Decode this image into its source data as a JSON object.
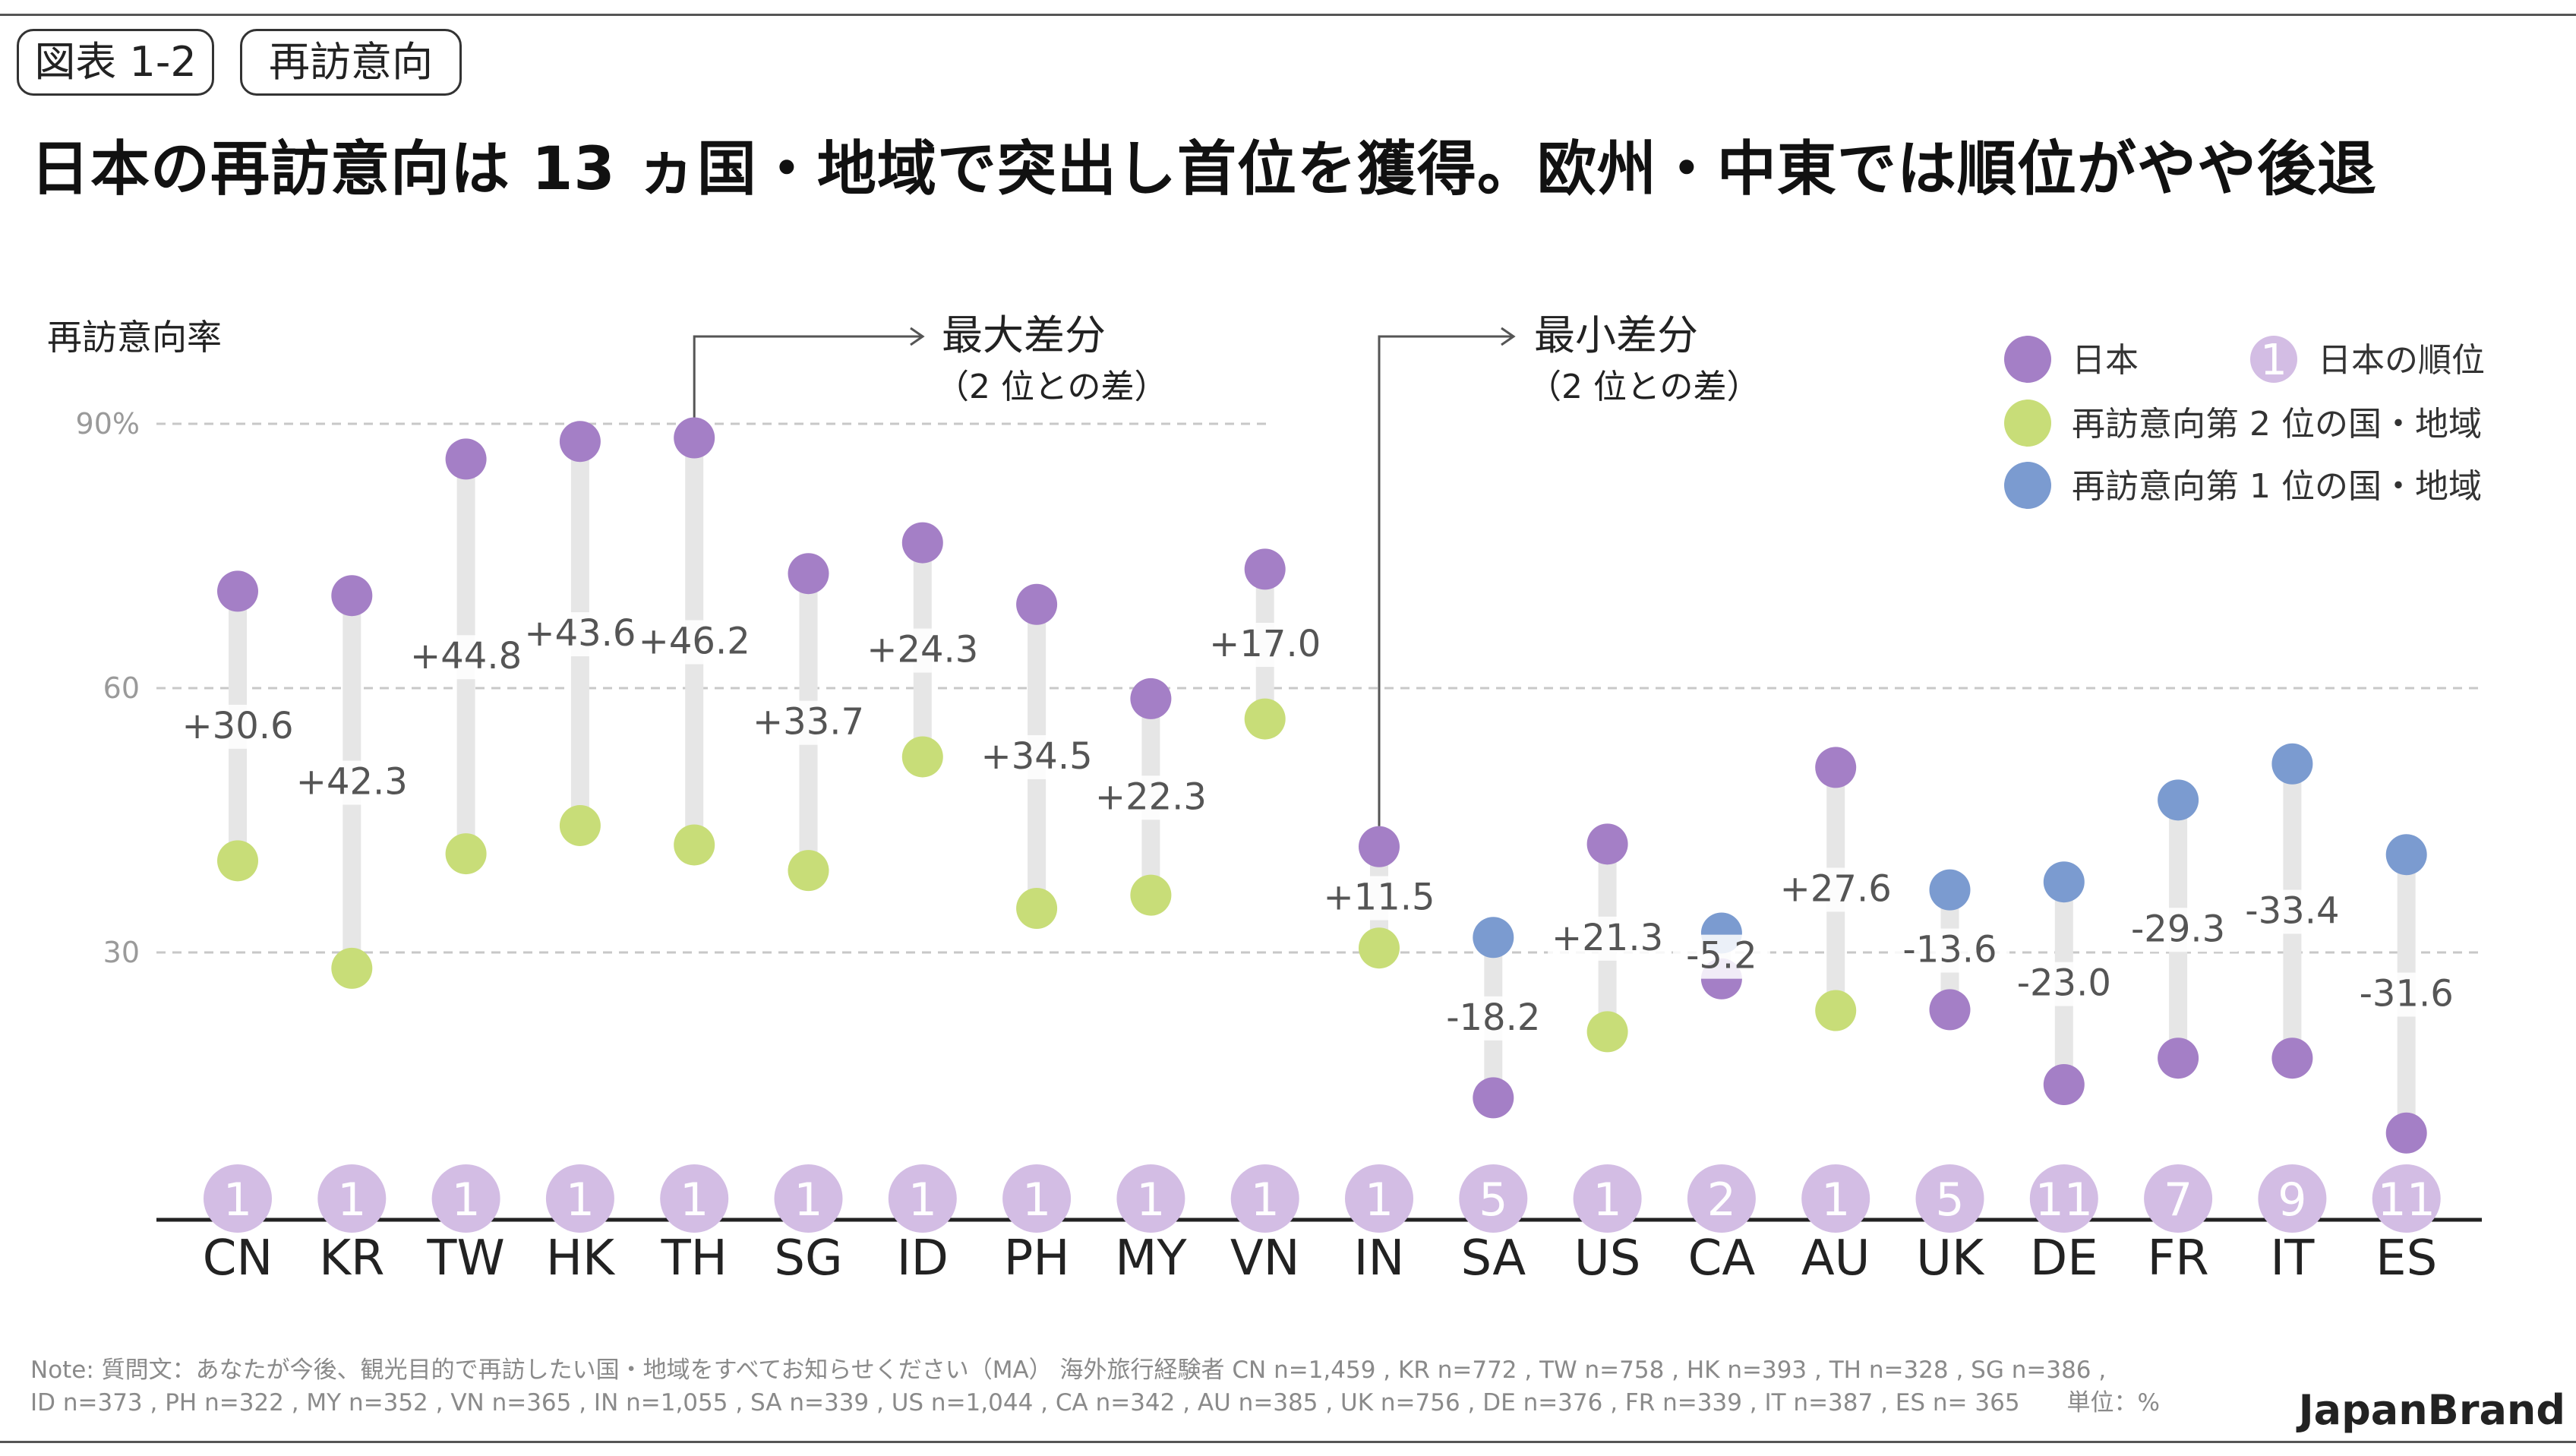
{
  "header": {
    "figure_tag": "図表 1-2",
    "topic_tag": "再訪意向",
    "headline": "日本の再訪意向は 13 ヵ国・地域で突出し首位を獲得。欧州・中東では順位がやや後退"
  },
  "chart_data": {
    "type": "dumbbell",
    "ylabel": "再訪意向率",
    "ylim": [
      0,
      95
    ],
    "yticks": [
      30,
      60,
      90
    ],
    "ytick_labels": [
      "30",
      "60",
      "90%"
    ],
    "categories": [
      "CN",
      "KR",
      "TW",
      "HK",
      "TH",
      "SG",
      "ID",
      "PH",
      "MY",
      "VN",
      "IN",
      "SA",
      "US",
      "CA",
      "AU",
      "UK",
      "DE",
      "FR",
      "IT",
      "ES"
    ],
    "japan": [
      71.0,
      70.5,
      86.0,
      88.0,
      88.4,
      73.0,
      76.5,
      69.5,
      58.8,
      73.5,
      42.0,
      13.5,
      42.3,
      27.0,
      51.0,
      23.5,
      15.0,
      18.0,
      18.0,
      9.5
    ],
    "comparison": [
      40.4,
      28.2,
      41.2,
      44.4,
      42.2,
      39.3,
      52.2,
      35.0,
      36.5,
      56.5,
      30.5,
      31.7,
      21.0,
      32.2,
      23.4,
      37.1,
      38.0,
      47.3,
      51.4,
      41.1
    ],
    "comparison_is_first": [
      false,
      false,
      false,
      false,
      false,
      false,
      false,
      false,
      false,
      false,
      false,
      true,
      false,
      true,
      false,
      true,
      true,
      true,
      true,
      true
    ],
    "differences": [
      "+30.6",
      "+42.3",
      "+44.8",
      "+43.6",
      "+46.2",
      "+33.7",
      "+24.3",
      "+34.5",
      "+22.3",
      "+17.0",
      "+11.5",
      "-18.2",
      "+21.3",
      "-5.2",
      "+27.6",
      "-13.6",
      "-23.0",
      "-29.3",
      "-33.4",
      "-31.6"
    ],
    "japan_rank": [
      "1",
      "1",
      "1",
      "1",
      "1",
      "1",
      "1",
      "1",
      "1",
      "1",
      "1",
      "5",
      "1",
      "2",
      "1",
      "5",
      "11",
      "7",
      "9",
      "11"
    ],
    "annotations": {
      "max": {
        "title": "最大差分",
        "sub": "（2 位との差）",
        "category": "TH"
      },
      "min": {
        "title": "最小差分",
        "sub": "（2 位との差）",
        "category": "IN"
      }
    },
    "legend": {
      "japan": "日本",
      "rank": "日本の順位",
      "rank_symbol": "1",
      "second": "再訪意向第 2 位の国・地域",
      "first": "再訪意向第 1 位の国・地域"
    },
    "colors": {
      "japan": "#a47fc6",
      "second": "#c8dd78",
      "first": "#7b9bd0",
      "rank_badge": "#d3bde4",
      "connector": "#e6e6e6",
      "grid": "#c8c8c8"
    }
  },
  "footer": {
    "note_line1": "Note: 質問文：あなたが今後、観光目的で再訪したい国・地域をすべてお知らせください（MA） 海外旅行経験者 CN n=1,459 , KR n=772 , TW n=758 , HK n=393 , TH n=328 , SG n=386 ,",
    "note_line2": "ID n=373 , PH n=322 , MY n=352 , VN n=365 , IN n=1,055 , SA n=339 , US n=1,044 , CA n=342 , AU n=385 , UK n=756 , DE n=376 , FR n=339 , IT n=387 , ES n= 365　　単位：%",
    "brand": "JapanBrand"
  }
}
